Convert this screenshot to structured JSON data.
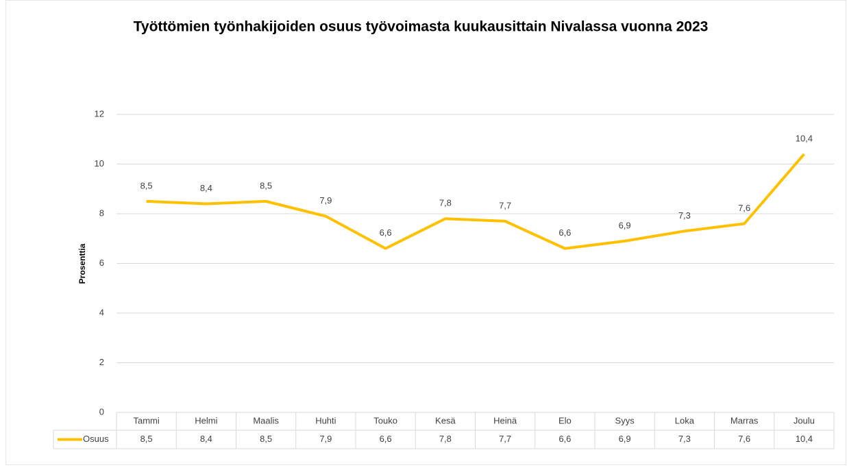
{
  "chart_data": {
    "type": "line",
    "title": "Työttömien työnhakijoiden osuus työvoimasta kuukausittain Nivalassa vuonna 2023",
    "y_label": "Prosenttia",
    "categories": [
      "Tammi",
      "Helmi",
      "Maalis",
      "Huhti",
      "Touko",
      "Kesä",
      "Heinä",
      "Elo",
      "Syys",
      "Loka",
      "Marras",
      "Joulu"
    ],
    "series": [
      {
        "name": "Osuus",
        "color": "#ffc000",
        "values": [
          8.5,
          8.4,
          8.5,
          7.9,
          6.6,
          7.8,
          7.7,
          6.6,
          6.9,
          7.3,
          7.6,
          10.4
        ],
        "value_labels": [
          "8,5",
          "8,4",
          "8,5",
          "7,9",
          "6,6",
          "7,8",
          "7,7",
          "6,6",
          "6,9",
          "7,3",
          "7,6",
          "10,4"
        ]
      }
    ],
    "ylim": [
      0,
      12
    ],
    "yticks": [
      0,
      2,
      4,
      6,
      8,
      10,
      12
    ],
    "grid": true,
    "data_table": true
  }
}
